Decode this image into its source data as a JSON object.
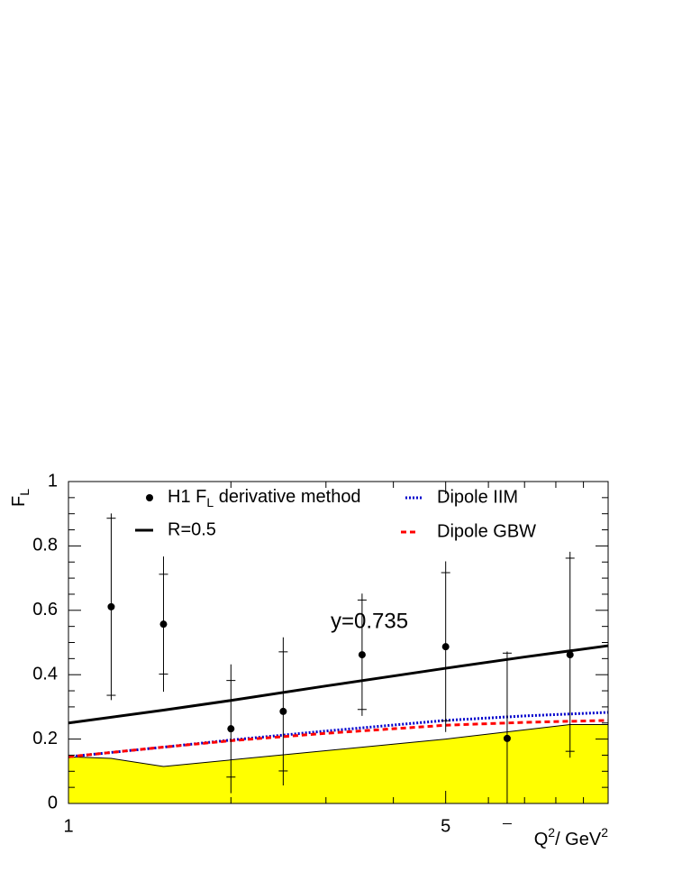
{
  "chart_data": {
    "type": "scatter",
    "x_log": true,
    "xlim": [
      1,
      10
    ],
    "ylim": [
      0,
      1
    ],
    "xticks": [
      1,
      5
    ],
    "xminorticks": [
      2,
      3,
      4,
      6,
      7,
      8,
      9
    ],
    "yticks": [
      0,
      0.2,
      0.4,
      0.6,
      0.8,
      1
    ],
    "yminorticks": [
      0.05,
      0.1,
      0.15,
      0.25,
      0.3,
      0.35,
      0.45,
      0.5,
      0.55,
      0.65,
      0.7,
      0.75,
      0.85,
      0.9,
      0.95
    ],
    "y_label": {
      "text": "F",
      "subscript": "L"
    },
    "x_label": {
      "text": "Q",
      "sup1": "2",
      "mid": "/ GeV",
      "sup2": "2"
    },
    "annotation": "y=0.735",
    "series": [
      {
        "type": "area",
        "color": "#ffff00",
        "x": [
          1,
          1.2,
          1.5,
          5,
          8.5,
          10
        ],
        "values": [
          0.145,
          0.14,
          0.115,
          0.2,
          0.245,
          0.245
        ]
      },
      {
        "type": "line",
        "name": "R=0.5",
        "color": "#000000",
        "dash": "solid",
        "x": [
          1,
          1.5,
          2,
          3,
          5,
          7,
          10
        ],
        "values": [
          0.25,
          0.29,
          0.32,
          0.365,
          0.42,
          0.455,
          0.49
        ]
      },
      {
        "type": "line",
        "name": "Dipole IIM",
        "color": "#0000cc",
        "dash": "dotted",
        "x": [
          1,
          1.5,
          2,
          3,
          5,
          7,
          10
        ],
        "values": [
          0.145,
          0.175,
          0.197,
          0.225,
          0.258,
          0.272,
          0.283
        ]
      },
      {
        "type": "line",
        "name": "Dipole GBW",
        "color": "#ff0000",
        "dash": "dashed",
        "x": [
          1,
          1.5,
          2,
          3,
          5,
          7,
          10
        ],
        "values": [
          0.145,
          0.175,
          0.195,
          0.218,
          0.243,
          0.252,
          0.258
        ]
      },
      {
        "type": "points",
        "name": {
          "text": "H1 F",
          "subscript": "L",
          "rest": " derivative method"
        },
        "color": "#000000",
        "x": [
          1.2,
          1.5,
          2,
          2.5,
          3.5,
          5,
          6.5,
          8.5
        ],
        "values": [
          0.611,
          0.557,
          0.232,
          0.286,
          0.462,
          0.487,
          0.202,
          0.462
        ],
        "err_total": [
          0.29,
          0.21,
          0.2,
          0.23,
          0.19,
          0.265,
          0.27,
          0.32
        ],
        "err_stat": [
          0.275,
          0.155,
          0.15,
          0.185,
          0.17,
          0.23,
          0.265,
          0.3
        ]
      }
    ]
  }
}
